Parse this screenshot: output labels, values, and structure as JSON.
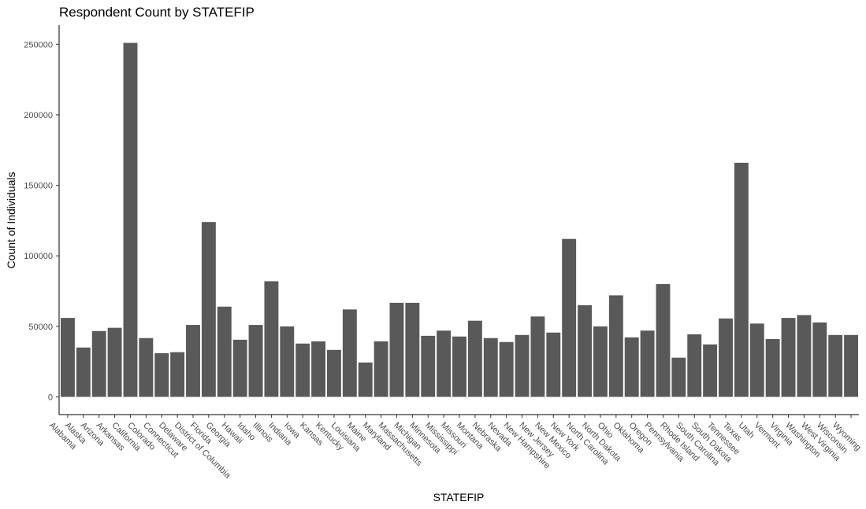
{
  "chart_data": {
    "type": "bar",
    "title": "Respondent Count by STATEFIP",
    "x_label": "STATEFIP",
    "y_label": "Count of Individuals",
    "categories": [
      "Alabama",
      "Alaska",
      "Arizona",
      "Arkansas",
      "California",
      "Colorado",
      "Connecticut",
      "Delaware",
      "District of Columbia",
      "Florida",
      "Georgia",
      "Hawaii",
      "Idaho",
      "Illinois",
      "Indiana",
      "Iowa",
      "Kansas",
      "Kentucky",
      "Louisiana",
      "Maine",
      "Maryland",
      "Massachusetts",
      "Michigan",
      "Minnesota",
      "Mississippi",
      "Missouri",
      "Montana",
      "Nebraska",
      "Nevada",
      "New Hampshire",
      "New Jersey",
      "New Mexico",
      "New York",
      "North Carolina",
      "North Dakota",
      "Ohio",
      "Oklahoma",
      "Oregon",
      "Pennsylvania",
      "Rhode Island",
      "South Carolina",
      "South Dakota",
      "Tennessee",
      "Texas",
      "Utah",
      "Vermont",
      "Virginia",
      "Washington",
      "West Virginia",
      "Wisconsin",
      "Wyoming"
    ],
    "values": [
      56000,
      35000,
      46700,
      49000,
      251000,
      41700,
      31000,
      31700,
      51000,
      124000,
      64000,
      40500,
      51000,
      82000,
      50000,
      37800,
      39400,
      33300,
      62000,
      24400,
      39400,
      66700,
      66700,
      43300,
      47000,
      42800,
      54000,
      41700,
      38900,
      43900,
      57000,
      45600,
      112000,
      65000,
      50000,
      72000,
      42200,
      47000,
      80000,
      27800,
      44400,
      37200,
      55600,
      166000,
      52000,
      41000,
      56000,
      58000,
      52800,
      43900,
      43900
    ],
    "color": "#595959",
    "ylim": [
      -12550,
      263550
    ],
    "yticks": [
      0,
      50000,
      100000,
      150000,
      200000,
      250000
    ],
    "grid": false
  }
}
